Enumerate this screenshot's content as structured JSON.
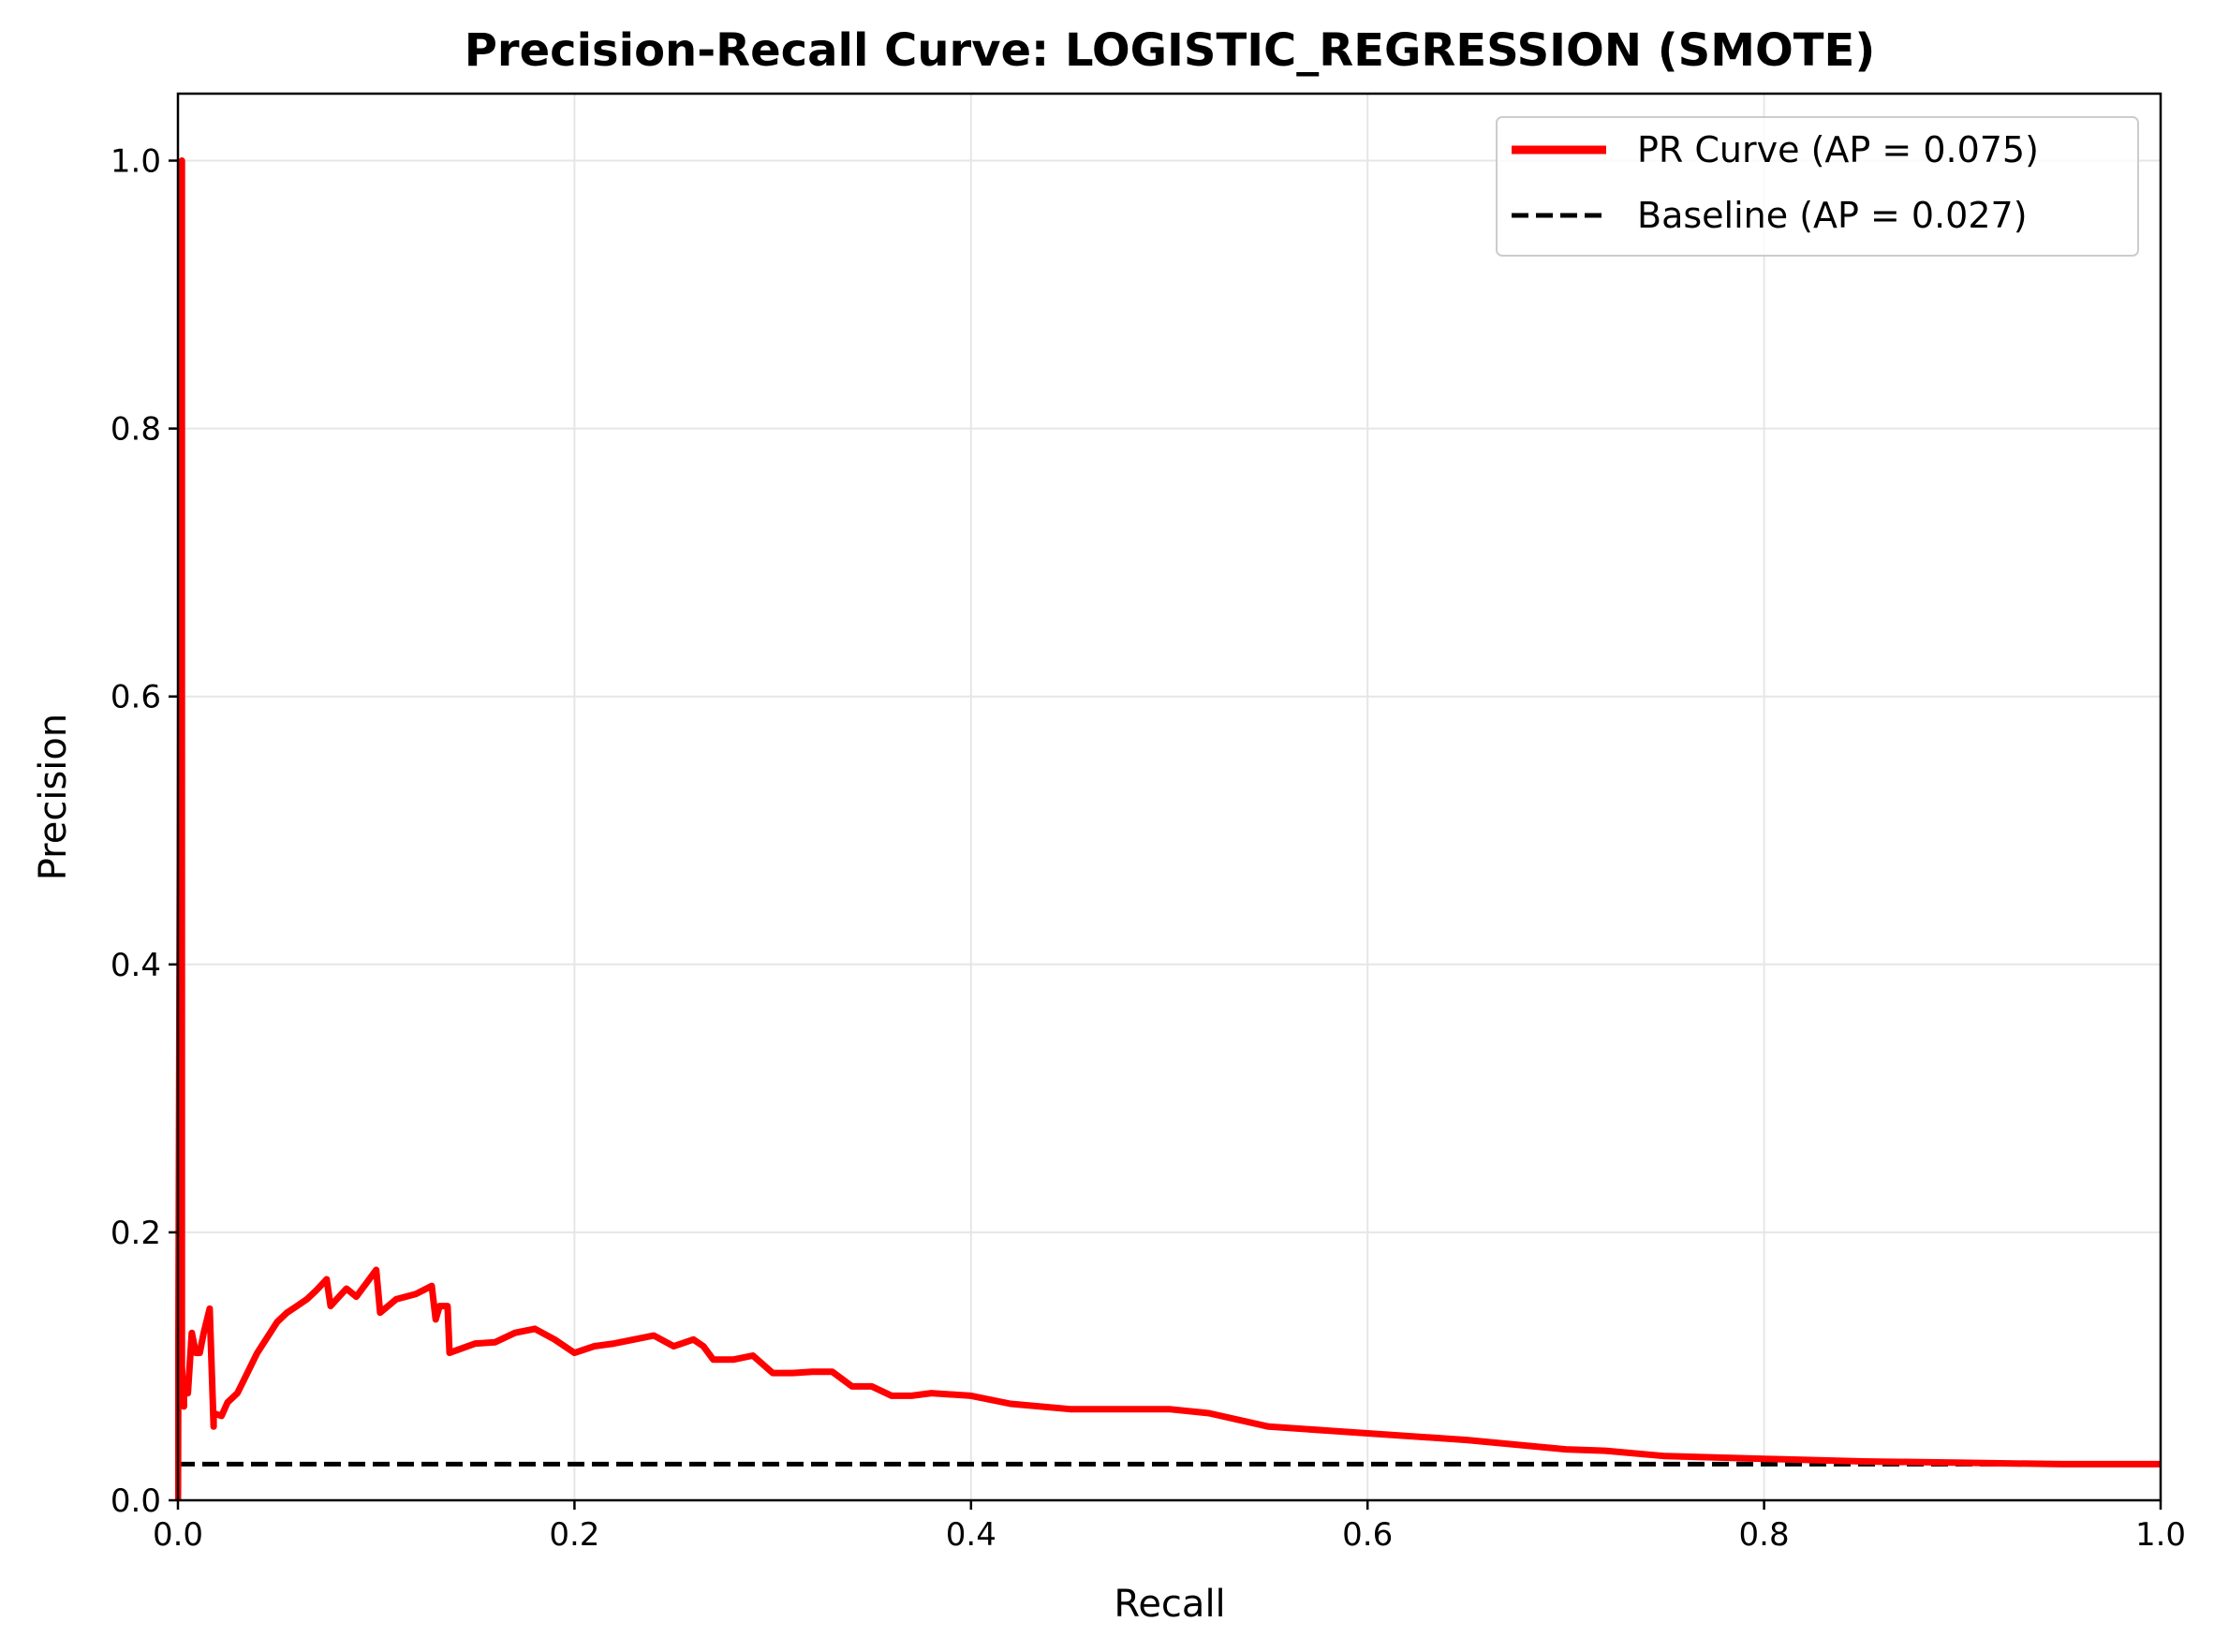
{
  "chart_data": {
    "type": "line",
    "title": "Precision-Recall Curve: LOGISTIC_REGRESSION (SMOTE)",
    "xlabel": "Recall",
    "ylabel": "Precision",
    "xlim": [
      0.0,
      1.0
    ],
    "ylim": [
      0.0,
      1.05
    ],
    "xticks": [
      "0.0",
      "0.2",
      "0.4",
      "0.6",
      "0.8",
      "1.0"
    ],
    "yticks": [
      "0.0",
      "0.2",
      "0.4",
      "0.6",
      "0.8",
      "1.0"
    ],
    "grid": true,
    "legend": {
      "placement": "top-right"
    },
    "series": [
      {
        "name": "PR Curve (AP = 0.075)",
        "color": "#ff0000",
        "style": "solid",
        "x": [
          0.0,
          0.002,
          0.002,
          0.003,
          0.003,
          0.005,
          0.007,
          0.009,
          0.011,
          0.013,
          0.016,
          0.018,
          0.018,
          0.022,
          0.025,
          0.03,
          0.04,
          0.05,
          0.055,
          0.06,
          0.065,
          0.07,
          0.075,
          0.077,
          0.08,
          0.085,
          0.09,
          0.095,
          0.1,
          0.102,
          0.11,
          0.12,
          0.128,
          0.13,
          0.132,
          0.136,
          0.137,
          0.15,
          0.16,
          0.17,
          0.18,
          0.19,
          0.2,
          0.21,
          0.22,
          0.23,
          0.24,
          0.25,
          0.26,
          0.265,
          0.27,
          0.28,
          0.29,
          0.3,
          0.31,
          0.32,
          0.33,
          0.34,
          0.35,
          0.36,
          0.37,
          0.38,
          0.4,
          0.42,
          0.45,
          0.5,
          0.52,
          0.55,
          0.58,
          0.6,
          0.65,
          0.7,
          0.72,
          0.75,
          0.8,
          0.85,
          0.9,
          0.95,
          1.0
        ],
        "y": [
          0.0,
          1.0,
          0.1,
          0.07,
          0.09,
          0.08,
          0.125,
          0.11,
          0.11,
          0.125,
          0.143,
          0.055,
          0.065,
          0.063,
          0.073,
          0.08,
          0.11,
          0.133,
          0.14,
          0.145,
          0.15,
          0.157,
          0.165,
          0.145,
          0.15,
          0.158,
          0.152,
          0.162,
          0.172,
          0.14,
          0.15,
          0.154,
          0.16,
          0.135,
          0.145,
          0.145,
          0.11,
          0.117,
          0.118,
          0.125,
          0.128,
          0.12,
          0.11,
          0.115,
          0.117,
          0.12,
          0.123,
          0.115,
          0.12,
          0.115,
          0.105,
          0.105,
          0.108,
          0.095,
          0.095,
          0.096,
          0.096,
          0.085,
          0.085,
          0.078,
          0.078,
          0.08,
          0.078,
          0.072,
          0.068,
          0.068,
          0.065,
          0.055,
          0.052,
          0.05,
          0.045,
          0.038,
          0.037,
          0.033,
          0.031,
          0.029,
          0.028,
          0.027,
          0.027
        ]
      },
      {
        "name": "Baseline (AP = 0.027)",
        "color": "#000000",
        "style": "dashed",
        "x": [
          0.0,
          1.0
        ],
        "y": [
          0.027,
          0.027
        ]
      }
    ]
  }
}
